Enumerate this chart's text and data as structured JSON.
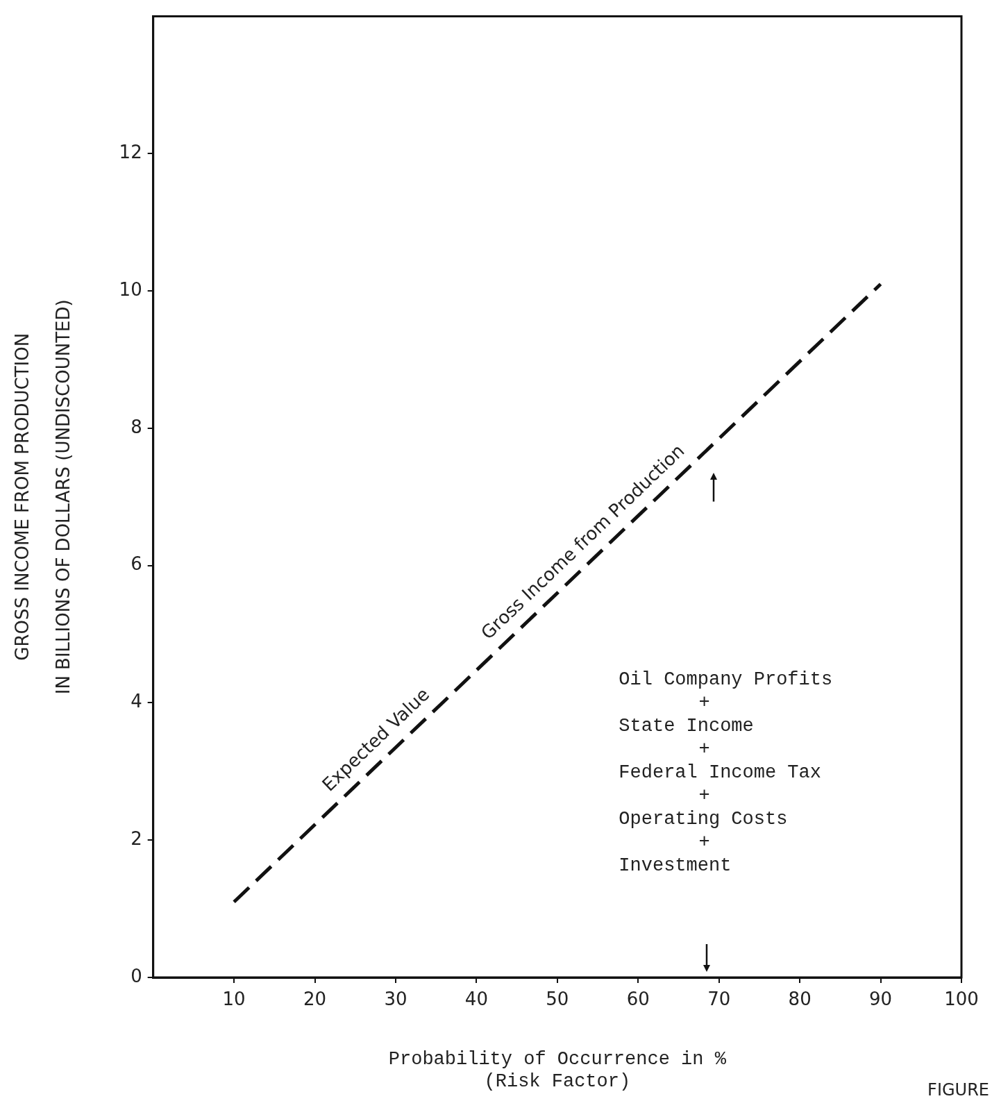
{
  "chart_data": {
    "type": "line",
    "xlabel": "Probability of Occurrence in %\n(Risk Factor)",
    "ylabel": "GROSS INCOME FROM PRODUCTION\nIN BILLIONS OF DOLLARS (UNDISCOUNTED)",
    "x": [
      10,
      90
    ],
    "series": [
      {
        "color": "#111111",
        "values": [
          1.1,
          10.1
        ]
      }
    ],
    "line_style": "dashed",
    "marker": "none",
    "grid": false,
    "legend": false,
    "xlim": [
      0,
      100
    ],
    "xticks": [
      10,
      20,
      30,
      40,
      50,
      60,
      70,
      80,
      90,
      100
    ],
    "ylim": [
      0,
      14
    ],
    "yticks": [
      0,
      2,
      4,
      6,
      8,
      10,
      12
    ],
    "annotations": [
      "Expected Value",
      "Gross Income from Production",
      "Oil Company Profits\n+\nState Income\n+\nFederal Income Tax\n+\nOperating Costs\n+\nInvestment",
      "FIGURE"
    ]
  }
}
